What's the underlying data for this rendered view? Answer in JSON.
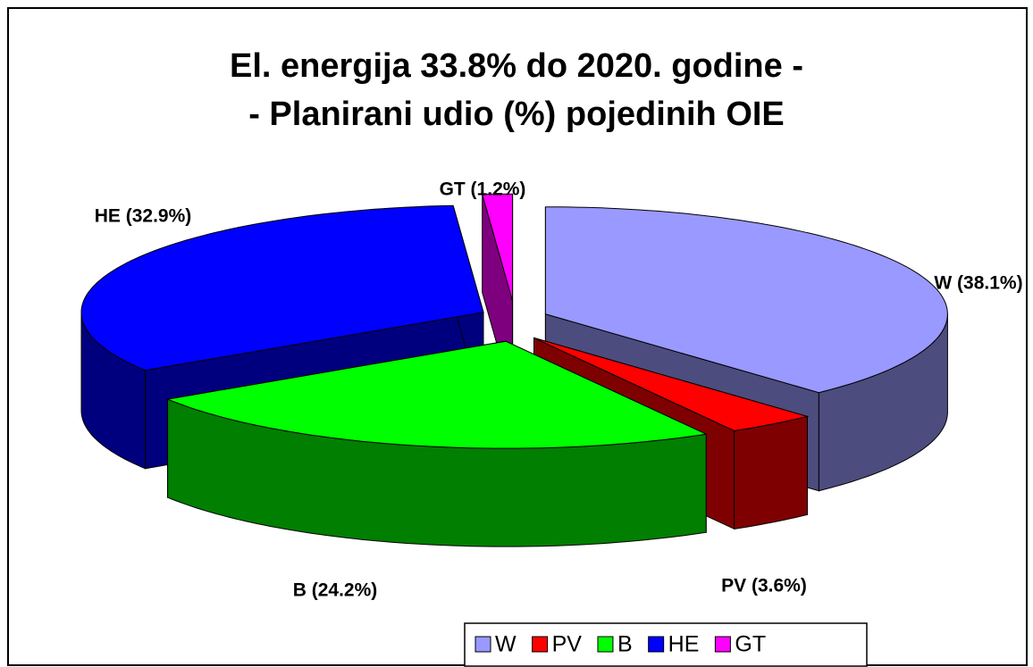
{
  "chart_data": {
    "type": "pie3d",
    "title": [
      "El. energija 33.8% do 2020. godine -",
      "- Planirani udio (%) pojedinih OIE"
    ],
    "categories": [
      "W",
      "PV",
      "B",
      "HE",
      "GT"
    ],
    "values": [
      38.1,
      3.6,
      24.2,
      32.9,
      1.2
    ],
    "value_labels": [
      "W (38.1%)",
      "PV (3.6%)",
      "B (24.2%)",
      "HE (32.9%)",
      "GT (1.2%)"
    ],
    "colors": [
      "#9999ff",
      "#ff0000",
      "#00ff00",
      "#0000ff",
      "#ff00ff"
    ],
    "legend": "bottom"
  }
}
